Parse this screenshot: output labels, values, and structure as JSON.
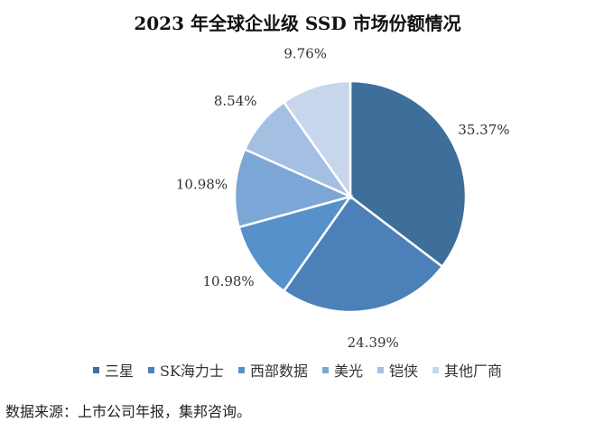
{
  "chart_data": {
    "type": "pie",
    "title": "2023 年全球企业级 SSD 市场份额情况",
    "categories": [
      "三星",
      "SK海力士",
      "西部数据",
      "美光",
      "铠侠",
      "其他厂商"
    ],
    "values": [
      35.37,
      24.39,
      10.98,
      10.98,
      8.54,
      9.76
    ],
    "value_labels": [
      "35.37%",
      "24.39%",
      "10.98%",
      "10.98%",
      "8.54%",
      "9.76%"
    ],
    "colors": [
      "#3e6e9a",
      "#4b81b8",
      "#5691cb",
      "#7ca6d6",
      "#a5bfe2",
      "#c7d6ec"
    ],
    "start_angle": "12 o'clock",
    "direction": "clockwise",
    "legend_position": "bottom"
  },
  "legend": {
    "items": [
      {
        "label": "三星",
        "color": "#3e6e9a"
      },
      {
        "label": "SK海力士",
        "color": "#4b81b8"
      },
      {
        "label": "西部数据",
        "color": "#5691cb"
      },
      {
        "label": "美光",
        "color": "#7ca6d6"
      },
      {
        "label": "铠侠",
        "color": "#a5bfe2"
      },
      {
        "label": "其他厂商",
        "color": "#c7d6ec"
      }
    ]
  },
  "source": "数据来源：上市公司年报，集邦咨询。"
}
